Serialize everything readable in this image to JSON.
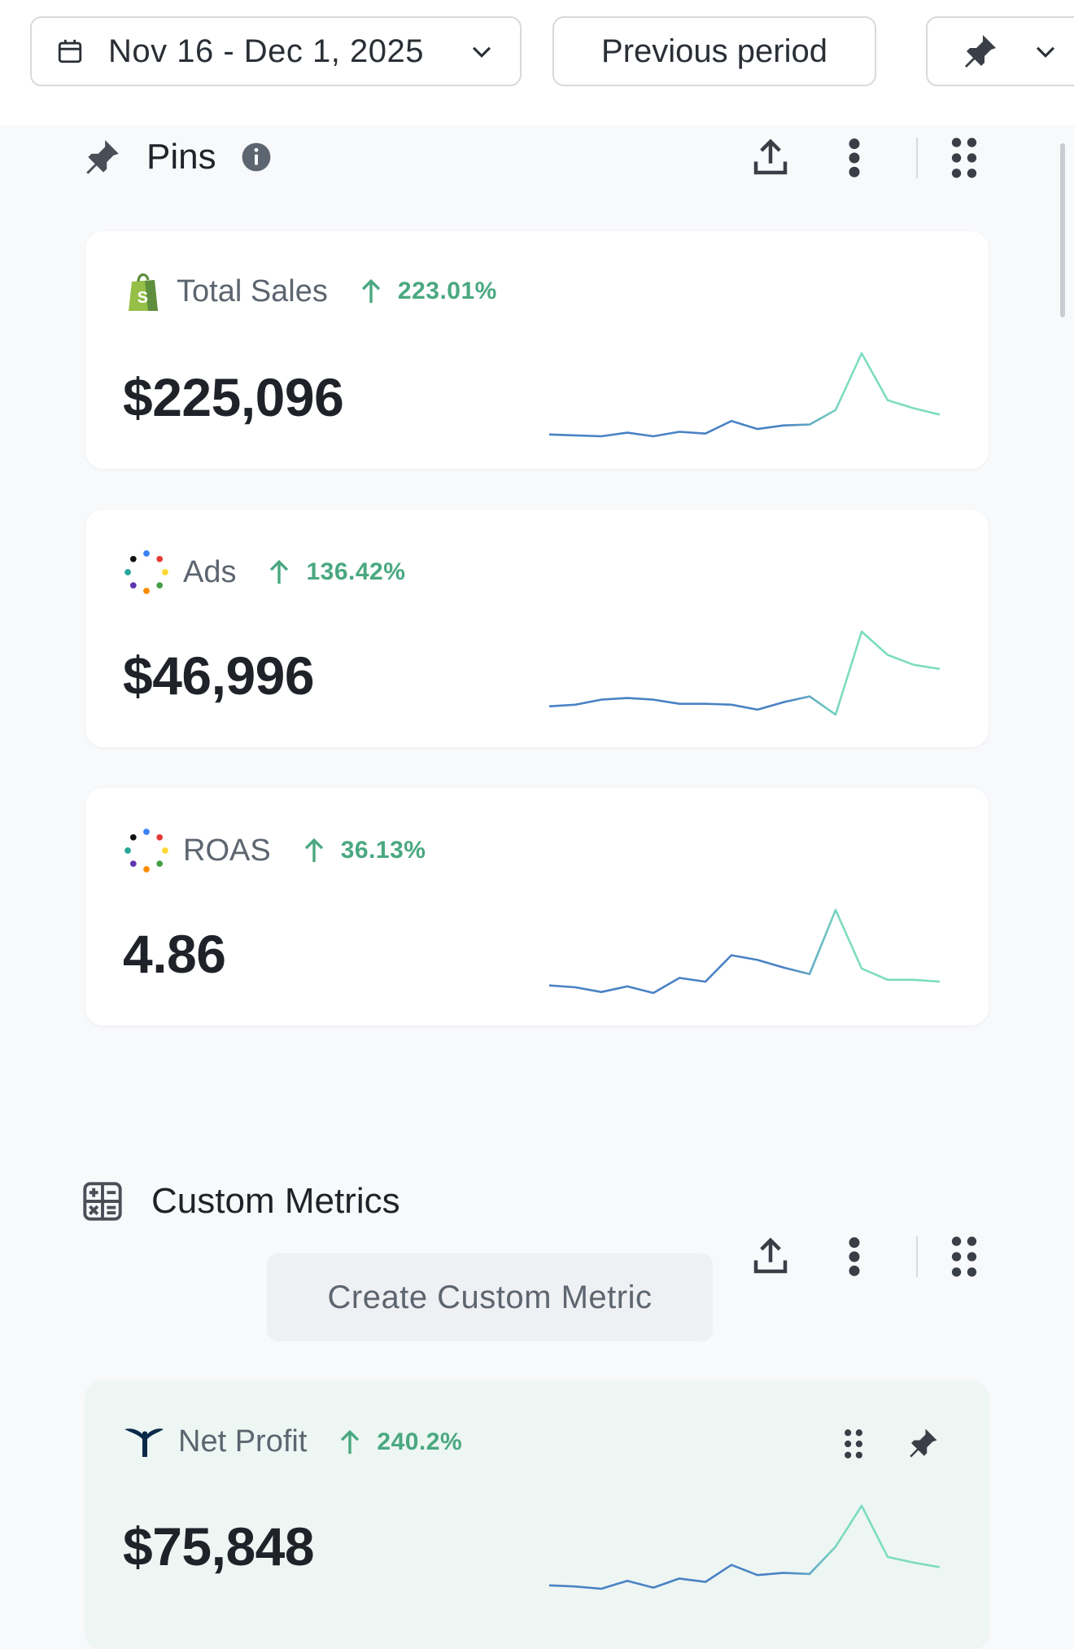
{
  "toolbar": {
    "date_range": "Nov 16 - Dec 1, 2025",
    "compare_label": "Previous period"
  },
  "pins_section": {
    "title": "Pins"
  },
  "pinned_metrics": [
    {
      "name": "Total Sales",
      "change": "223.01%",
      "value": "$225,096",
      "source_icon": "shopify-icon",
      "trend": [
        2.0,
        1.9,
        1.8,
        2.2,
        1.8,
        2.3,
        2.1,
        3.5,
        2.6,
        3.0,
        3.1,
        4.7,
        11.0,
        5.8,
        4.9,
        4.2
      ]
    },
    {
      "name": "Ads",
      "change": "136.42%",
      "value": "$46,996",
      "source_icon": "dots-logo-icon",
      "trend": [
        2.0,
        2.2,
        2.8,
        3.0,
        2.8,
        2.3,
        2.3,
        2.2,
        1.6,
        2.5,
        3.2,
        1.0,
        11.0,
        8.2,
        7.0,
        6.5
      ]
    },
    {
      "name": "ROAS",
      "change": "36.13%",
      "value": "4.86",
      "source_icon": "dots-logo-icon",
      "trend": [
        2.0,
        1.8,
        1.3,
        1.9,
        1.2,
        2.8,
        2.4,
        5.2,
        4.7,
        3.9,
        3.2,
        10.0,
        3.8,
        2.6,
        2.6,
        2.4
      ]
    }
  ],
  "custom_section": {
    "title": "Custom Metrics",
    "create_label": "Create Custom Metric"
  },
  "custom_metrics": [
    {
      "name": "Net Profit",
      "change": "240.2%",
      "value": "$75,848",
      "source_icon": "triple-whale-icon",
      "trend": [
        2.0,
        1.9,
        1.7,
        2.4,
        1.8,
        2.6,
        2.3,
        3.8,
        2.9,
        3.1,
        3.0,
        5.4,
        9.0,
        4.5,
        4.0,
        3.6
      ]
    }
  ],
  "colors": {
    "accent_green": "#4aa880",
    "spark_start": "#4a82c4",
    "spark_end": "#7ddcc0",
    "card_green": "#edf6f3"
  }
}
